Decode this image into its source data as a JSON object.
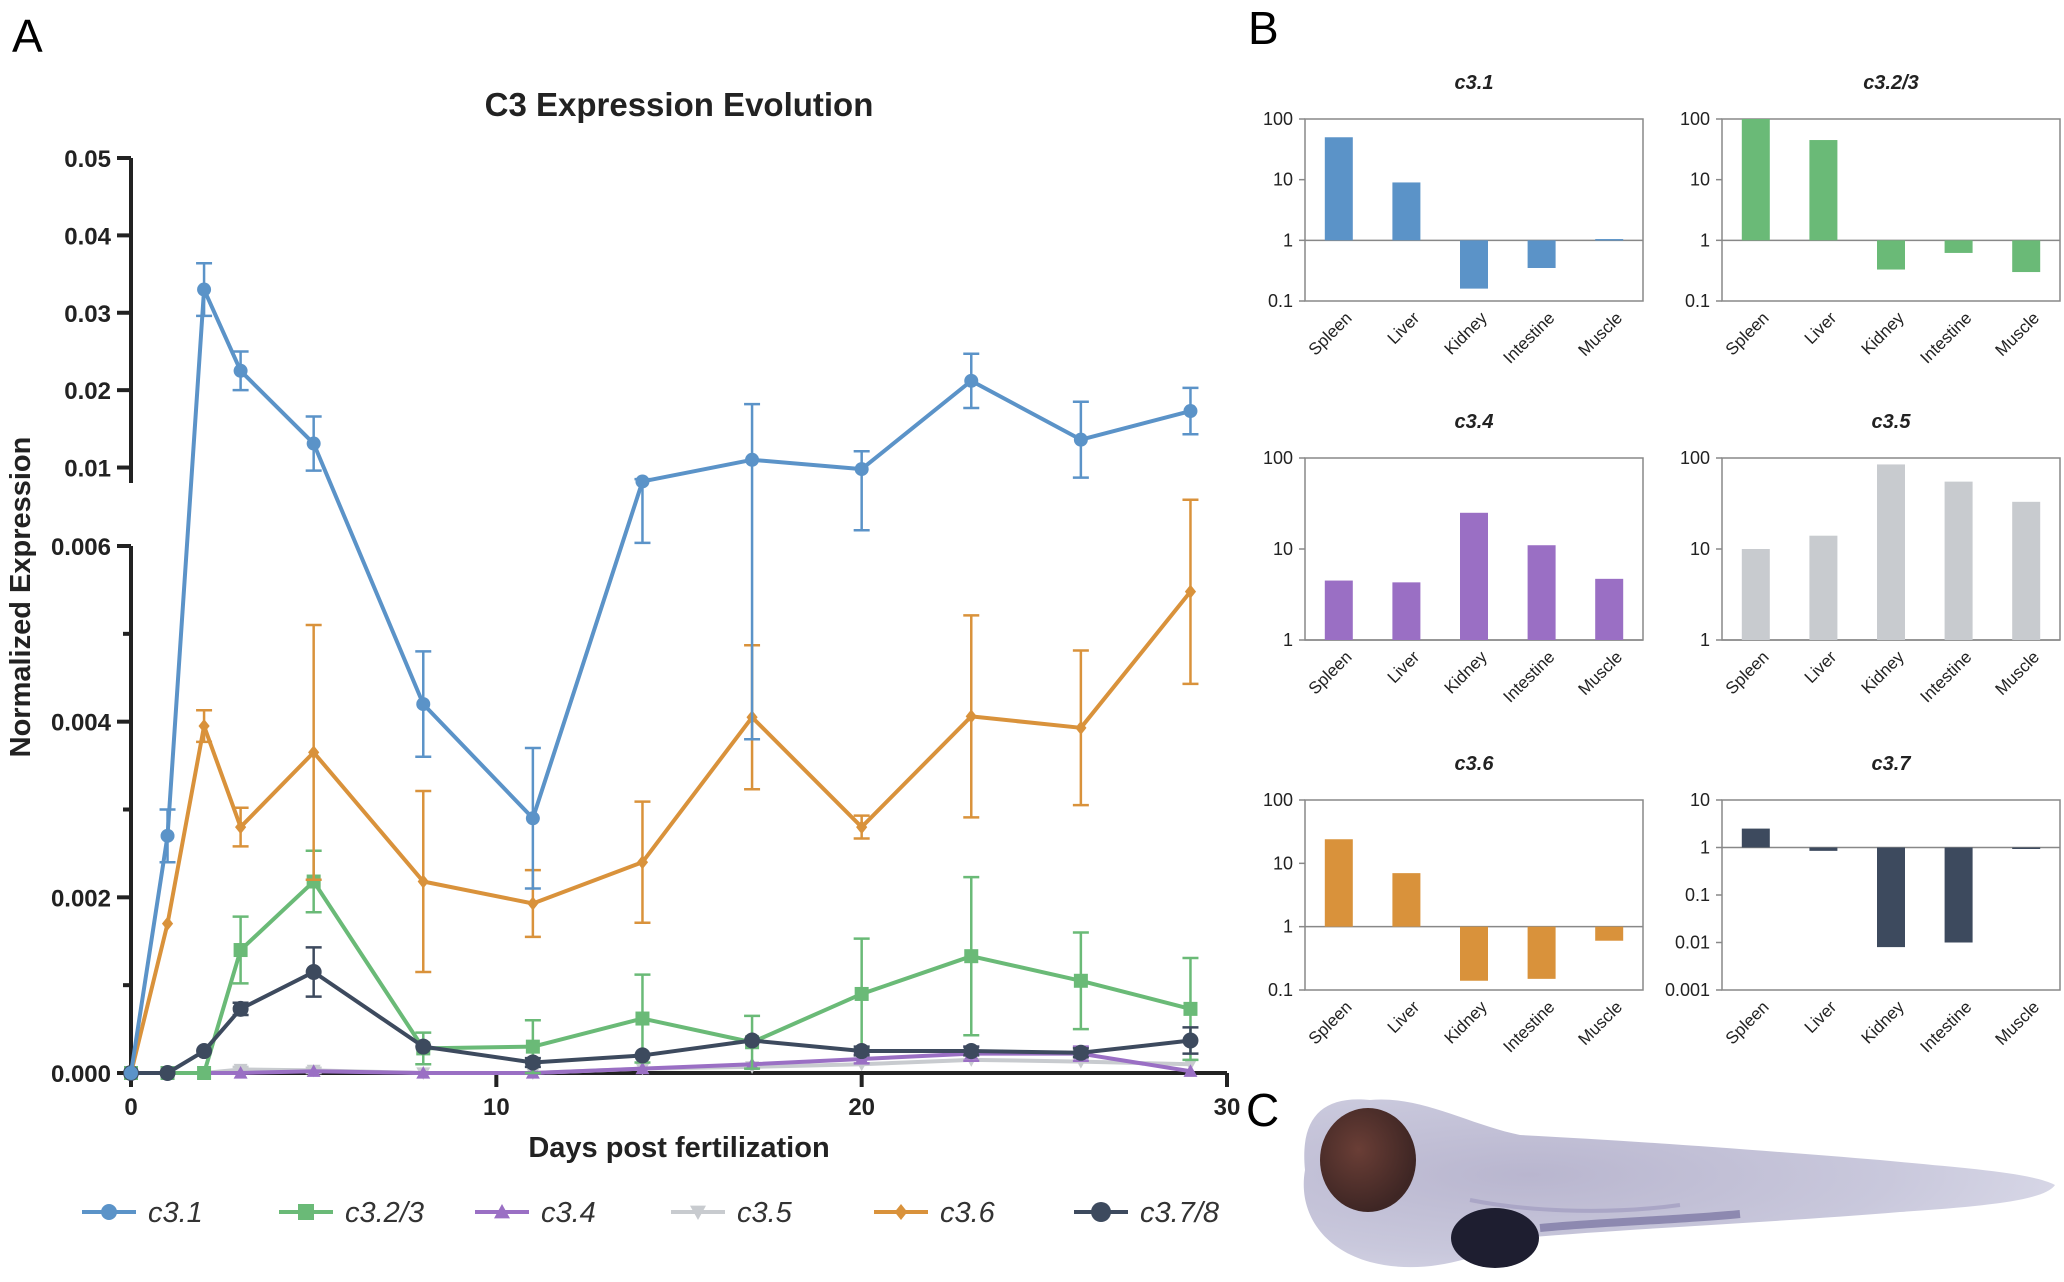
{
  "panels": {
    "a": "A",
    "b": "B",
    "c": "C"
  },
  "chart_data": [
    {
      "type": "line",
      "title": "C3 Expression Evolution",
      "xlabel": "Days post fertilization",
      "ylabel": "Normalized Expression",
      "xlim": [
        0,
        30
      ],
      "xticks": [
        "0",
        "10",
        "20",
        "30"
      ],
      "y_axis_broken": true,
      "ylim_lower": [
        0,
        0.006
      ],
      "ylim_upper": [
        0.008,
        0.05
      ],
      "yticks_lower": [
        "0.000",
        "0.002",
        "0.004",
        "0.006"
      ],
      "yticks_upper": [
        "0.01",
        "0.02",
        "0.03",
        "0.04",
        "0.05"
      ],
      "legend_position": "bottom",
      "series": [
        {
          "name": "c3.1",
          "color": "#5b93c8",
          "marker": "circle",
          "x": [
            0,
            1,
            2,
            3,
            5,
            8,
            11,
            14,
            17,
            20,
            23,
            26,
            29
          ],
          "y": [
            0,
            0.0027,
            0.033,
            0.0225,
            0.0131,
            0.0042,
            0.0029,
            0.0082,
            0.011,
            0.0098,
            0.0212,
            0.0136,
            0.0173
          ],
          "err": [
            0,
            0.0003,
            0.0034,
            0.0025,
            0.0035,
            0.0006,
            0.0008,
            0.0003,
            0.0072,
            0.0023,
            0.0035,
            0.0049,
            0.003
          ]
        },
        {
          "name": "c3.2/3",
          "color": "#6aba77",
          "marker": "square",
          "x": [
            0,
            1,
            2,
            3,
            5,
            8,
            11,
            14,
            17,
            20,
            23,
            26,
            29
          ],
          "y": [
            0,
            0,
            0,
            0.0014,
            0.00218,
            0.00028,
            0.0003,
            0.00062,
            0.00035,
            0.0009,
            0.00133,
            0.00105,
            0.00073
          ],
          "err": [
            0,
            0,
            0,
            0.00038,
            0.00035,
            0.00018,
            0.0003,
            0.0005,
            0.0003,
            0.00063,
            0.0009,
            0.00055,
            0.00058
          ]
        },
        {
          "name": "c3.4",
          "color": "#9a6fc4",
          "marker": "triangle",
          "x": [
            0,
            1,
            2,
            3,
            5,
            8,
            11,
            14,
            17,
            20,
            23,
            26,
            29
          ],
          "y": [
            0,
            0,
            0,
            0,
            2e-05,
            0,
            0,
            5e-05,
            0.0001,
            0.00016,
            0.00022,
            0.00022,
            2e-05
          ],
          "err": [
            0,
            0,
            0,
            0,
            0,
            0,
            0,
            0,
            0,
            5e-05,
            8e-05,
            8e-05,
            0
          ]
        },
        {
          "name": "c3.5",
          "color": "#c8cbcf",
          "marker": "triangle-down",
          "x": [
            0,
            1,
            2,
            3,
            5,
            8,
            11,
            14,
            17,
            20,
            23,
            26,
            29
          ],
          "y": [
            0,
            0,
            0,
            4e-05,
            3e-05,
            0,
            0,
            5e-05,
            7e-05,
            0.0001,
            0.00015,
            0.00013,
            0.0001
          ],
          "err": [
            0,
            0,
            0,
            3e-05,
            3e-05,
            0,
            0,
            0,
            0,
            0,
            0,
            0,
            0
          ]
        },
        {
          "name": "c3.6",
          "color": "#d9923b",
          "marker": "diamond",
          "x": [
            0,
            1,
            2,
            3,
            5,
            8,
            11,
            14,
            17,
            20,
            23,
            26,
            29
          ],
          "y": [
            0,
            0.0017,
            0.00395,
            0.0028,
            0.00365,
            0.00218,
            0.00193,
            0.0024,
            0.00405,
            0.0028,
            0.00406,
            0.00393,
            0.00548
          ],
          "err": [
            0,
            0,
            0.00018,
            0.00022,
            0.00145,
            0.00103,
            0.00038,
            0.00069,
            0.00082,
            0.00013,
            0.00115,
            0.00088,
            0.00105
          ]
        },
        {
          "name": "c3.7/8",
          "color": "#3d4a5e",
          "marker": "circle",
          "x": [
            0,
            1,
            2,
            3,
            5,
            8,
            11,
            14,
            17,
            20,
            23,
            26,
            29
          ],
          "y": [
            0,
            0,
            0.00025,
            0.00073,
            0.00115,
            0.0003,
            0.00012,
            0.0002,
            0.00037,
            0.00025,
            0.00025,
            0.00023,
            0.00037
          ],
          "err": [
            0,
            0,
            0,
            7e-05,
            0.00028,
            0,
            5e-05,
            0,
            0,
            5e-05,
            5e-05,
            5e-05,
            0.00015
          ]
        }
      ]
    },
    {
      "type": "bar",
      "title": "c3.1",
      "log_scale": true,
      "color": "#5b93c8",
      "categories": [
        "Spleen",
        "Liver",
        "Kidney",
        "Intestine",
        "Muscle"
      ],
      "values": [
        50,
        9,
        0.16,
        0.35,
        1.05
      ],
      "ylim": [
        0.1,
        100
      ],
      "yticks": [
        "0.1",
        "1",
        "10",
        "100"
      ]
    },
    {
      "type": "bar",
      "title": "c3.2/3",
      "log_scale": true,
      "color": "#6aba77",
      "categories": [
        "Spleen",
        "Liver",
        "Kidney",
        "Intestine",
        "Muscle"
      ],
      "values": [
        100,
        45,
        0.33,
        0.62,
        0.3
      ],
      "ylim": [
        0.1,
        100
      ],
      "yticks": [
        "0.1",
        "1",
        "10",
        "100"
      ]
    },
    {
      "type": "bar",
      "title": "c3.4",
      "log_scale": true,
      "color": "#9a6fc4",
      "categories": [
        "Spleen",
        "Liver",
        "Kidney",
        "Intestine",
        "Muscle"
      ],
      "values": [
        4.5,
        4.3,
        25,
        11,
        4.7
      ],
      "ylim": [
        1,
        100
      ],
      "yticks": [
        "1",
        "10",
        "100"
      ]
    },
    {
      "type": "bar",
      "title": "c3.5",
      "log_scale": true,
      "color": "#c8cbcf",
      "categories": [
        "Spleen",
        "Liver",
        "Kidney",
        "Intestine",
        "Muscle"
      ],
      "values": [
        10,
        14,
        85,
        55,
        33
      ],
      "ylim": [
        1,
        100
      ],
      "yticks": [
        "1",
        "10",
        "100"
      ]
    },
    {
      "type": "bar",
      "title": "c3.6",
      "log_scale": true,
      "color": "#d9923b",
      "categories": [
        "Spleen",
        "Liver",
        "Kidney",
        "Intestine",
        "Muscle"
      ],
      "values": [
        24,
        7,
        0.14,
        0.15,
        0.6
      ],
      "ylim": [
        0.1,
        100
      ],
      "yticks": [
        "0.1",
        "1",
        "10",
        "100"
      ]
    },
    {
      "type": "bar",
      "title": "c3.7",
      "log_scale": true,
      "color": "#3d4a5e",
      "categories": [
        "Spleen",
        "Liver",
        "Kidney",
        "Intestine",
        "Muscle"
      ],
      "values": [
        2.5,
        0.85,
        0.008,
        0.01,
        1
      ],
      "ylim": [
        0.001,
        10
      ],
      "yticks": [
        "0.001",
        "0.01",
        "0.1",
        "1",
        "10"
      ]
    }
  ]
}
